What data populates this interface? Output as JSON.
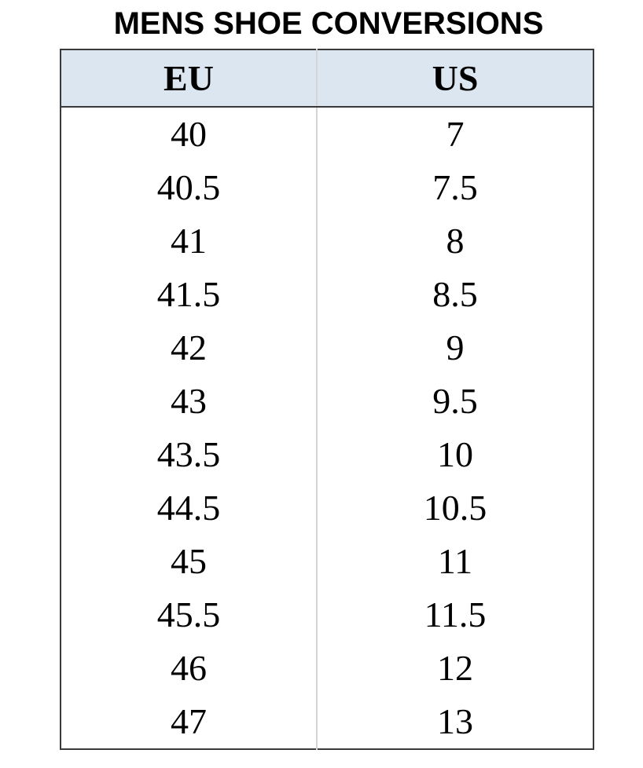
{
  "title": "MENS SHOE CONVERSIONS",
  "headers": [
    "EU",
    "US"
  ],
  "rows": [
    [
      "40",
      "7"
    ],
    [
      "40.5",
      "7.5"
    ],
    [
      "41",
      "8"
    ],
    [
      "41.5",
      "8.5"
    ],
    [
      "42",
      "9"
    ],
    [
      "43",
      "9.5"
    ],
    [
      "43.5",
      "10"
    ],
    [
      "44.5",
      "10.5"
    ],
    [
      "45",
      "11"
    ],
    [
      "45.5",
      "11.5"
    ],
    [
      "46",
      "12"
    ],
    [
      "47",
      "13"
    ]
  ],
  "colors": {
    "header_bg": "#dce6f1",
    "border": "#3a3a3a",
    "divider": "#d4d4d4"
  }
}
